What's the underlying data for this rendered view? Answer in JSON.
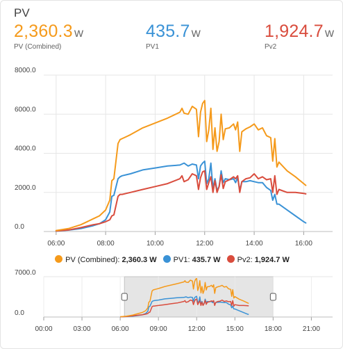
{
  "card": {
    "title": "PV"
  },
  "stats": [
    {
      "value": "2,360.3",
      "unit": "W",
      "label": "PV (Combined)",
      "color": "#f59a1b"
    },
    {
      "value": "435.7",
      "unit": "W",
      "label": "PV1",
      "color": "#3a92d6"
    },
    {
      "value": "1,924.7",
      "unit": "W",
      "label": "Pv2",
      "color": "#d94c3d"
    }
  ],
  "legend": [
    {
      "label": "PV (Combined): ",
      "value": "2,360.3 W"
    },
    {
      "label": "PV1: ",
      "value": "435.7 W"
    },
    {
      "label": "Pv2: ",
      "value": "1,924.7 W"
    }
  ],
  "chart_data": [
    {
      "type": "line",
      "title": "",
      "xlabel": "",
      "ylabel": "",
      "xlim": [
        "05:30",
        "17:10"
      ],
      "ylim": [
        0,
        8000
      ],
      "y_ticks": [
        "8000.0",
        "6000.0",
        "4000.0",
        "2000.0",
        "0.0"
      ],
      "x_ticks": [
        "06:00",
        "08:00",
        "10:00",
        "12:00",
        "14:00",
        "16:00"
      ],
      "grid": true,
      "legend_position": "bottom",
      "series": [
        {
          "name": "PV (Combined)",
          "color": "#f59a1b",
          "x": [
            "06:00",
            "06:30",
            "07:00",
            "07:30",
            "07:45",
            "08:00",
            "08:10",
            "08:15",
            "08:20",
            "08:30",
            "08:35",
            "08:40",
            "08:50",
            "09:00",
            "09:30",
            "10:00",
            "10:30",
            "11:00",
            "11:05",
            "11:10",
            "11:20",
            "11:30",
            "11:40",
            "11:45",
            "11:50",
            "11:55",
            "12:00",
            "12:05",
            "12:10",
            "12:15",
            "12:20",
            "12:25",
            "12:30",
            "12:35",
            "12:40",
            "12:45",
            "12:50",
            "13:00",
            "13:10",
            "13:15",
            "13:20",
            "13:25",
            "13:30",
            "13:40",
            "13:50",
            "14:00",
            "14:10",
            "14:20",
            "14:30",
            "14:40",
            "14:45",
            "14:50",
            "14:55",
            "15:00",
            "15:20",
            "15:40",
            "16:00",
            "16:05"
          ],
          "values": [
            50,
            150,
            350,
            650,
            800,
            1100,
            1600,
            2600,
            2700,
            4500,
            4700,
            4750,
            4850,
            4950,
            5300,
            5550,
            5800,
            6100,
            6300,
            6050,
            6000,
            6400,
            6250,
            4850,
            6100,
            6550,
            6700,
            4600,
            5200,
            6300,
            4200,
            5300,
            4100,
            4600,
            6000,
            4700,
            5250,
            5300,
            5500,
            5200,
            5600,
            4100,
            5100,
            5250,
            5350,
            5500,
            5200,
            5300,
            4900,
            4800,
            3600,
            4750,
            3300,
            3550,
            3100,
            2800,
            2450,
            2360
          ]
        },
        {
          "name": "PV1",
          "color": "#3a92d6",
          "x": [
            "06:00",
            "06:30",
            "07:00",
            "07:30",
            "07:45",
            "08:00",
            "08:10",
            "08:15",
            "08:20",
            "08:30",
            "08:35",
            "08:40",
            "08:50",
            "09:00",
            "09:30",
            "10:00",
            "10:30",
            "11:00",
            "11:05",
            "11:10",
            "11:20",
            "11:30",
            "11:40",
            "11:45",
            "11:50",
            "11:55",
            "12:00",
            "12:05",
            "12:10",
            "12:15",
            "12:20",
            "12:25",
            "12:30",
            "12:35",
            "12:40",
            "12:45",
            "12:50",
            "13:00",
            "13:10",
            "13:15",
            "13:20",
            "13:25",
            "13:30",
            "13:40",
            "13:50",
            "14:00",
            "14:10",
            "14:20",
            "14:30",
            "14:40",
            "14:45",
            "14:50",
            "14:55",
            "15:00",
            "15:20",
            "15:40",
            "16:00",
            "16:05"
          ],
          "values": [
            20,
            70,
            150,
            300,
            400,
            600,
            1000,
            1800,
            1850,
            2700,
            2800,
            2850,
            2900,
            2950,
            3150,
            3250,
            3350,
            3400,
            3450,
            3500,
            3350,
            3450,
            3400,
            2700,
            3350,
            3500,
            3600,
            2450,
            2700,
            3500,
            2200,
            2700,
            2100,
            2300,
            3100,
            2500,
            2700,
            2650,
            2700,
            2500,
            2750,
            2100,
            2550,
            2550,
            2600,
            2550,
            2500,
            2500,
            2250,
            2100,
            1600,
            1900,
            1400,
            1400,
            1100,
            800,
            500,
            436
          ]
        },
        {
          "name": "Pv2",
          "color": "#d94c3d",
          "x": [
            "06:00",
            "06:30",
            "07:00",
            "07:30",
            "07:45",
            "08:00",
            "08:10",
            "08:15",
            "08:20",
            "08:30",
            "08:35",
            "08:40",
            "08:50",
            "09:00",
            "09:30",
            "10:00",
            "10:30",
            "11:00",
            "11:05",
            "11:10",
            "11:20",
            "11:30",
            "11:40",
            "11:45",
            "11:50",
            "11:55",
            "12:00",
            "12:05",
            "12:10",
            "12:15",
            "12:20",
            "12:25",
            "12:30",
            "12:35",
            "12:40",
            "12:45",
            "12:50",
            "13:00",
            "13:10",
            "13:15",
            "13:20",
            "13:25",
            "13:30",
            "13:40",
            "13:50",
            "14:00",
            "14:10",
            "14:20",
            "14:30",
            "14:40",
            "14:45",
            "14:50",
            "14:55",
            "15:00",
            "15:20",
            "15:40",
            "16:00",
            "16:05"
          ],
          "values": [
            30,
            80,
            200,
            350,
            400,
            500,
            600,
            800,
            850,
            1800,
            1900,
            1900,
            1950,
            2000,
            2150,
            2300,
            2450,
            2700,
            2850,
            2550,
            2650,
            2950,
            2850,
            2150,
            2750,
            3050,
            3100,
            2150,
            2500,
            2800,
            2000,
            2600,
            2000,
            2300,
            2900,
            2200,
            2550,
            2650,
            2800,
            2700,
            2850,
            2000,
            2550,
            2700,
            2750,
            2950,
            2700,
            2800,
            2650,
            2700,
            2000,
            2850,
            1900,
            2150,
            2000,
            2000,
            1950,
            1925
          ]
        }
      ]
    },
    {
      "type": "line",
      "title": "",
      "xlabel": "",
      "ylabel": "",
      "xlim": [
        "00:00",
        "22:40"
      ],
      "ylim": [
        0,
        7000
      ],
      "y_ticks": [
        "7000.0",
        "0.0"
      ],
      "x_ticks": [
        "00:00",
        "03:00",
        "06:00",
        "09:00",
        "12:00",
        "15:00",
        "18:00",
        "21:00"
      ],
      "selection": [
        "06:20",
        "18:00"
      ],
      "grid": true,
      "series_ref": [
        "PV (Combined)",
        "PV1",
        "Pv2"
      ]
    }
  ]
}
